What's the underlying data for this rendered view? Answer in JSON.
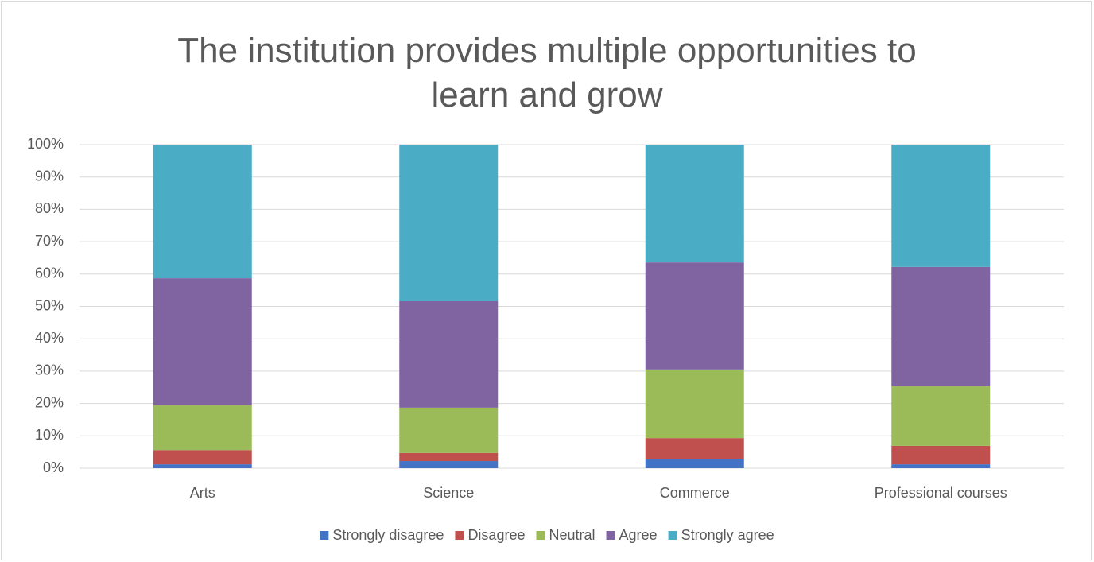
{
  "chart_data": {
    "type": "bar",
    "stacked": true,
    "title": "The institution provides multiple opportunities to learn and grow",
    "categories": [
      "Arts",
      "Science",
      "Commerce",
      "Professional courses"
    ],
    "series": [
      {
        "name": "Strongly disagree",
        "color": "#4472c4",
        "values": [
          1.2,
          2.2,
          2.7,
          1.2
        ]
      },
      {
        "name": "Disagree",
        "color": "#c0504d",
        "values": [
          4.4,
          2.5,
          6.6,
          5.7
        ]
      },
      {
        "name": "Neutral",
        "color": "#9bbb59",
        "values": [
          13.8,
          14.0,
          21.2,
          18.4
        ]
      },
      {
        "name": "Agree",
        "color": "#8064a2",
        "values": [
          39.3,
          32.9,
          33.1,
          36.9
        ]
      },
      {
        "name": "Strongly agree",
        "color": "#4bacc6",
        "values": [
          41.3,
          48.4,
          36.4,
          37.8
        ]
      }
    ],
    "ylim": [
      0,
      100
    ],
    "yticks": [
      {
        "value": 0,
        "label": "0%"
      },
      {
        "value": 10,
        "label": "10%"
      },
      {
        "value": 20,
        "label": "20%"
      },
      {
        "value": 30,
        "label": "30%"
      },
      {
        "value": 40,
        "label": "40%"
      },
      {
        "value": 50,
        "label": "50%"
      },
      {
        "value": 60,
        "label": "60%"
      },
      {
        "value": 70,
        "label": "70%"
      },
      {
        "value": 80,
        "label": "80%"
      },
      {
        "value": 90,
        "label": "90%"
      },
      {
        "value": 100,
        "label": "100%"
      }
    ],
    "grid": true,
    "legend": "bottom"
  }
}
